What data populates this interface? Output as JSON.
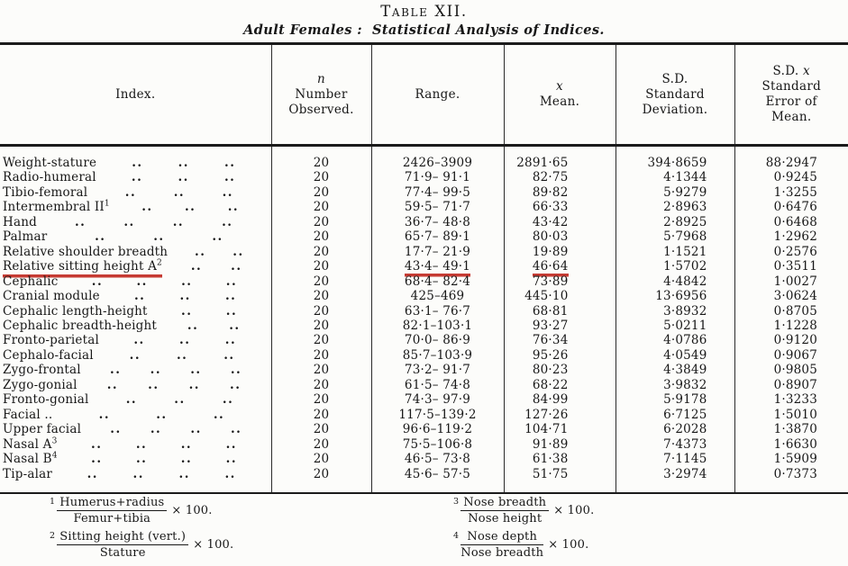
{
  "page": {
    "title": "Table XII.",
    "subtitle": "Adult Females :  Statistical Analysis of Indices."
  },
  "colors": {
    "paper": "#fcfcfa",
    "ink": "#171717",
    "red_annotation": "#c63b33"
  },
  "table": {
    "headers": {
      "index": "Index.",
      "n_symbol": "n",
      "n_lines": "Number\nObserved.",
      "range": "Range.",
      "mean_symbol": "x",
      "mean_lines": "Mean.",
      "sd_lines": "S.D.\nStandard\nDeviation.",
      "se_prefix": "S.D. ",
      "se_symbol": "x",
      "se_lines": "Standard\nError of\nMean."
    },
    "rows": [
      {
        "name": "Weight-stature",
        "sup": "",
        "leaders": 3,
        "n": "20",
        "range": "2426–3909",
        "mean": "2891·65",
        "sd": "394·8659",
        "se": "88·2947",
        "highlight": false
      },
      {
        "name": "Radio-humeral",
        "sup": "",
        "leaders": 3,
        "n": "20",
        "range": "71·9– 91·1",
        "mean": "82·75",
        "sd": "4·1344",
        "se": "0·9245",
        "highlight": false
      },
      {
        "name": "Tibio-femoral",
        "sup": "",
        "leaders": 3,
        "n": "20",
        "range": "77·4– 99·5",
        "mean": "89·82",
        "sd": "5·9279",
        "se": "1·3255",
        "highlight": false
      },
      {
        "name": "Intermembral II",
        "sup": "1",
        "leaders": 3,
        "n": "20",
        "range": "59·5– 71·7",
        "mean": "66·33",
        "sd": "2·8963",
        "se": "0·6476",
        "highlight": false
      },
      {
        "name": "Hand",
        "sup": "",
        "leaders": 4,
        "n": "20",
        "range": "36·7– 48·8",
        "mean": "43·42",
        "sd": "2·8925",
        "se": "0·6468",
        "highlight": false
      },
      {
        "name": "Palmar",
        "sup": "",
        "leaders": 3,
        "n": "20",
        "range": "65·7– 89·1",
        "mean": "80·03",
        "sd": "5·7968",
        "se": "1·2962",
        "highlight": false
      },
      {
        "name": "Relative shoulder breadth",
        "sup": "",
        "leaders": 2,
        "n": "20",
        "range": "17·7– 21·9",
        "mean": "19·89",
        "sd": "1·1521",
        "se": "0·2576",
        "highlight": false
      },
      {
        "name": "Relative sitting height A",
        "sup": "2",
        "leaders": 2,
        "n": "20",
        "range": "43·4– 49·1",
        "mean": "46·64",
        "sd": "1·5702",
        "se": "0·3511",
        "highlight": true
      },
      {
        "name": "Cephalic",
        "sup": "",
        "leaders": 4,
        "n": "20",
        "range": "68·4– 82·4",
        "mean": "73·89",
        "sd": "4·4842",
        "se": "1·0027",
        "highlight": false
      },
      {
        "name": "Cranial module",
        "sup": "",
        "leaders": 3,
        "n": "20",
        "range": "425–469",
        "mean": "445·10",
        "sd": "13·6956",
        "se": "3·0624",
        "highlight": false
      },
      {
        "name": "Cephalic length-height",
        "sup": "",
        "leaders": 2,
        "n": "20",
        "range": "63·1– 76·7",
        "mean": "68·81",
        "sd": "3·8932",
        "se": "0·8705",
        "highlight": false
      },
      {
        "name": "Cephalic breadth-height",
        "sup": "",
        "leaders": 2,
        "n": "20",
        "range": "82·1–103·1",
        "mean": "93·27",
        "sd": "5·0211",
        "se": "1·1228",
        "highlight": false
      },
      {
        "name": "Fronto-parietal",
        "sup": "",
        "leaders": 3,
        "n": "20",
        "range": "70·0– 86·9",
        "mean": "76·34",
        "sd": "4·0786",
        "se": "0·9120",
        "highlight": false
      },
      {
        "name": "Cephalo-facial",
        "sup": "",
        "leaders": 3,
        "n": "20",
        "range": "85·7–103·9",
        "mean": "95·26",
        "sd": "4·0549",
        "se": "0·9067",
        "highlight": false
      },
      {
        "name": "Zygo-frontal",
        "sup": "",
        "leaders": 4,
        "n": "20",
        "range": "73·2– 91·7",
        "mean": "80·23",
        "sd": "4·3849",
        "se": "0·9805",
        "highlight": false
      },
      {
        "name": "Zygo-gonial",
        "sup": "",
        "leaders": 4,
        "n": "20",
        "range": "61·5– 74·8",
        "mean": "68·22",
        "sd": "3·9832",
        "se": "0·8907",
        "highlight": false
      },
      {
        "name": "Fronto-gonial",
        "sup": "",
        "leaders": 3,
        "n": "20",
        "range": "74·3– 97·9",
        "mean": "84·99",
        "sd": "5·9178",
        "se": "1·3233",
        "highlight": false
      },
      {
        "name": "Facial ..",
        "sup": "",
        "leaders": 3,
        "n": "20",
        "range": "117·5–139·2",
        "mean": "127·26",
        "sd": "6·7125",
        "se": "1·5010",
        "highlight": false
      },
      {
        "name": "Upper facial",
        "sup": "",
        "leaders": 4,
        "n": "20",
        "range": "96·6–119·2",
        "mean": "104·71",
        "sd": "6·2028",
        "se": "1·3870",
        "highlight": false
      },
      {
        "name": "Nasal A",
        "sup": "3",
        "leaders": 4,
        "n": "20",
        "range": "75·5–106·8",
        "mean": "91·89",
        "sd": "7·4373",
        "se": "1·6630",
        "highlight": false
      },
      {
        "name": "Nasal B",
        "sup": "4",
        "leaders": 4,
        "n": "20",
        "range": "46·5– 73·8",
        "mean": "61·38",
        "sd": "7·1145",
        "se": "1·5909",
        "highlight": false
      },
      {
        "name": "Tip-alar",
        "sup": "",
        "leaders": 4,
        "n": "20",
        "range": "45·6– 57·5",
        "mean": "51·75",
        "sd": "3·2974",
        "se": "0·7373",
        "highlight": false
      }
    ]
  },
  "footnotes": [
    {
      "sup": "1",
      "numerator": "Humerus+radius",
      "denominator": "Femur+tibia",
      "multiplier": "× 100."
    },
    {
      "sup": "2",
      "numerator": "Sitting height (vert.)",
      "denominator": "Stature",
      "multiplier": "× 100."
    },
    {
      "sup": "3",
      "numerator": "Nose breadth",
      "denominator": "Nose height",
      "multiplier": "× 100."
    },
    {
      "sup": "4",
      "numerator": "Nose depth",
      "denominator": "Nose breadth",
      "multiplier": "× 100."
    }
  ]
}
